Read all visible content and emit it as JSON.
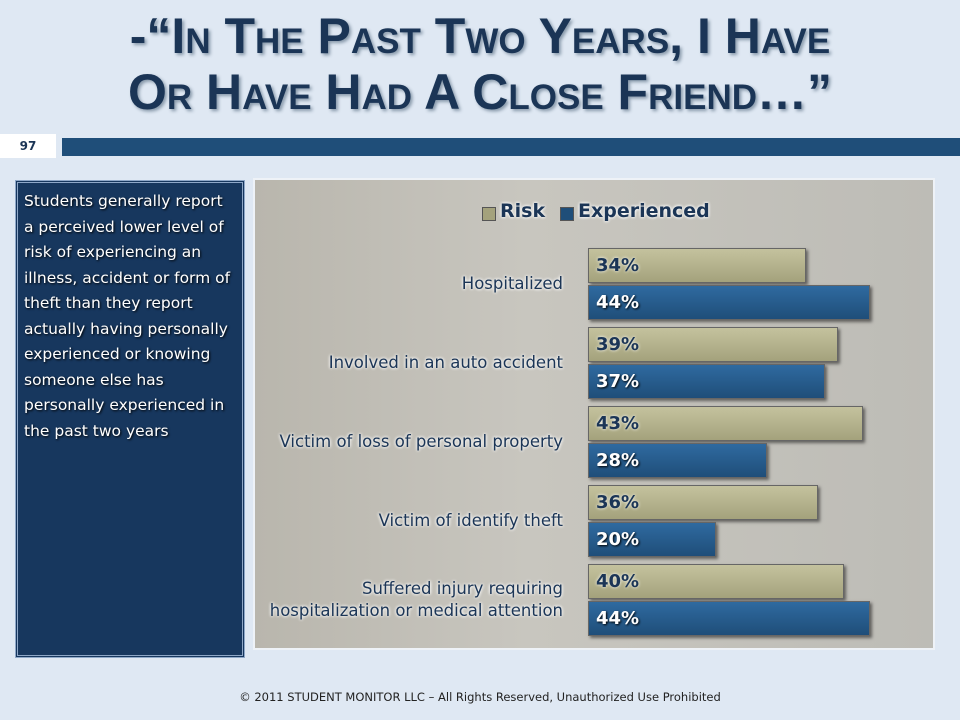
{
  "slide_number": "97",
  "title_lines": [
    "-“In The Past Two Years, I Have",
    "Or Have Had A Close Friend…”"
  ],
  "sidebar_text": "Students generally report a perceived lower level of risk of experiencing an illness, accident or form of theft than they report actually having personally experienced or knowing someone else has personally experienced in the past two years",
  "footer": "© 2011 STUDENT MONITOR LLC – All Rights Reserved, Unauthorized Use Prohibited",
  "chart_data": {
    "type": "hbar",
    "categories": [
      "Hospitalized",
      "Involved in an auto accident",
      "Victim of loss of personal property",
      "Victim of identify theft",
      "Suffered injury requiring hospitalization or medical attention"
    ],
    "series": [
      {
        "name": "Risk",
        "color": "#a4a27c",
        "values": [
          34,
          39,
          43,
          36,
          40
        ],
        "value_labels": [
          "34%",
          "39%",
          "43%",
          "36%",
          "40%"
        ]
      },
      {
        "name": "Experienced",
        "color": "#1f4e79",
        "values": [
          44,
          37,
          28,
          20,
          44
        ],
        "value_labels": [
          "44%",
          "37%",
          "28%",
          "20%",
          "44%"
        ]
      }
    ]
  }
}
